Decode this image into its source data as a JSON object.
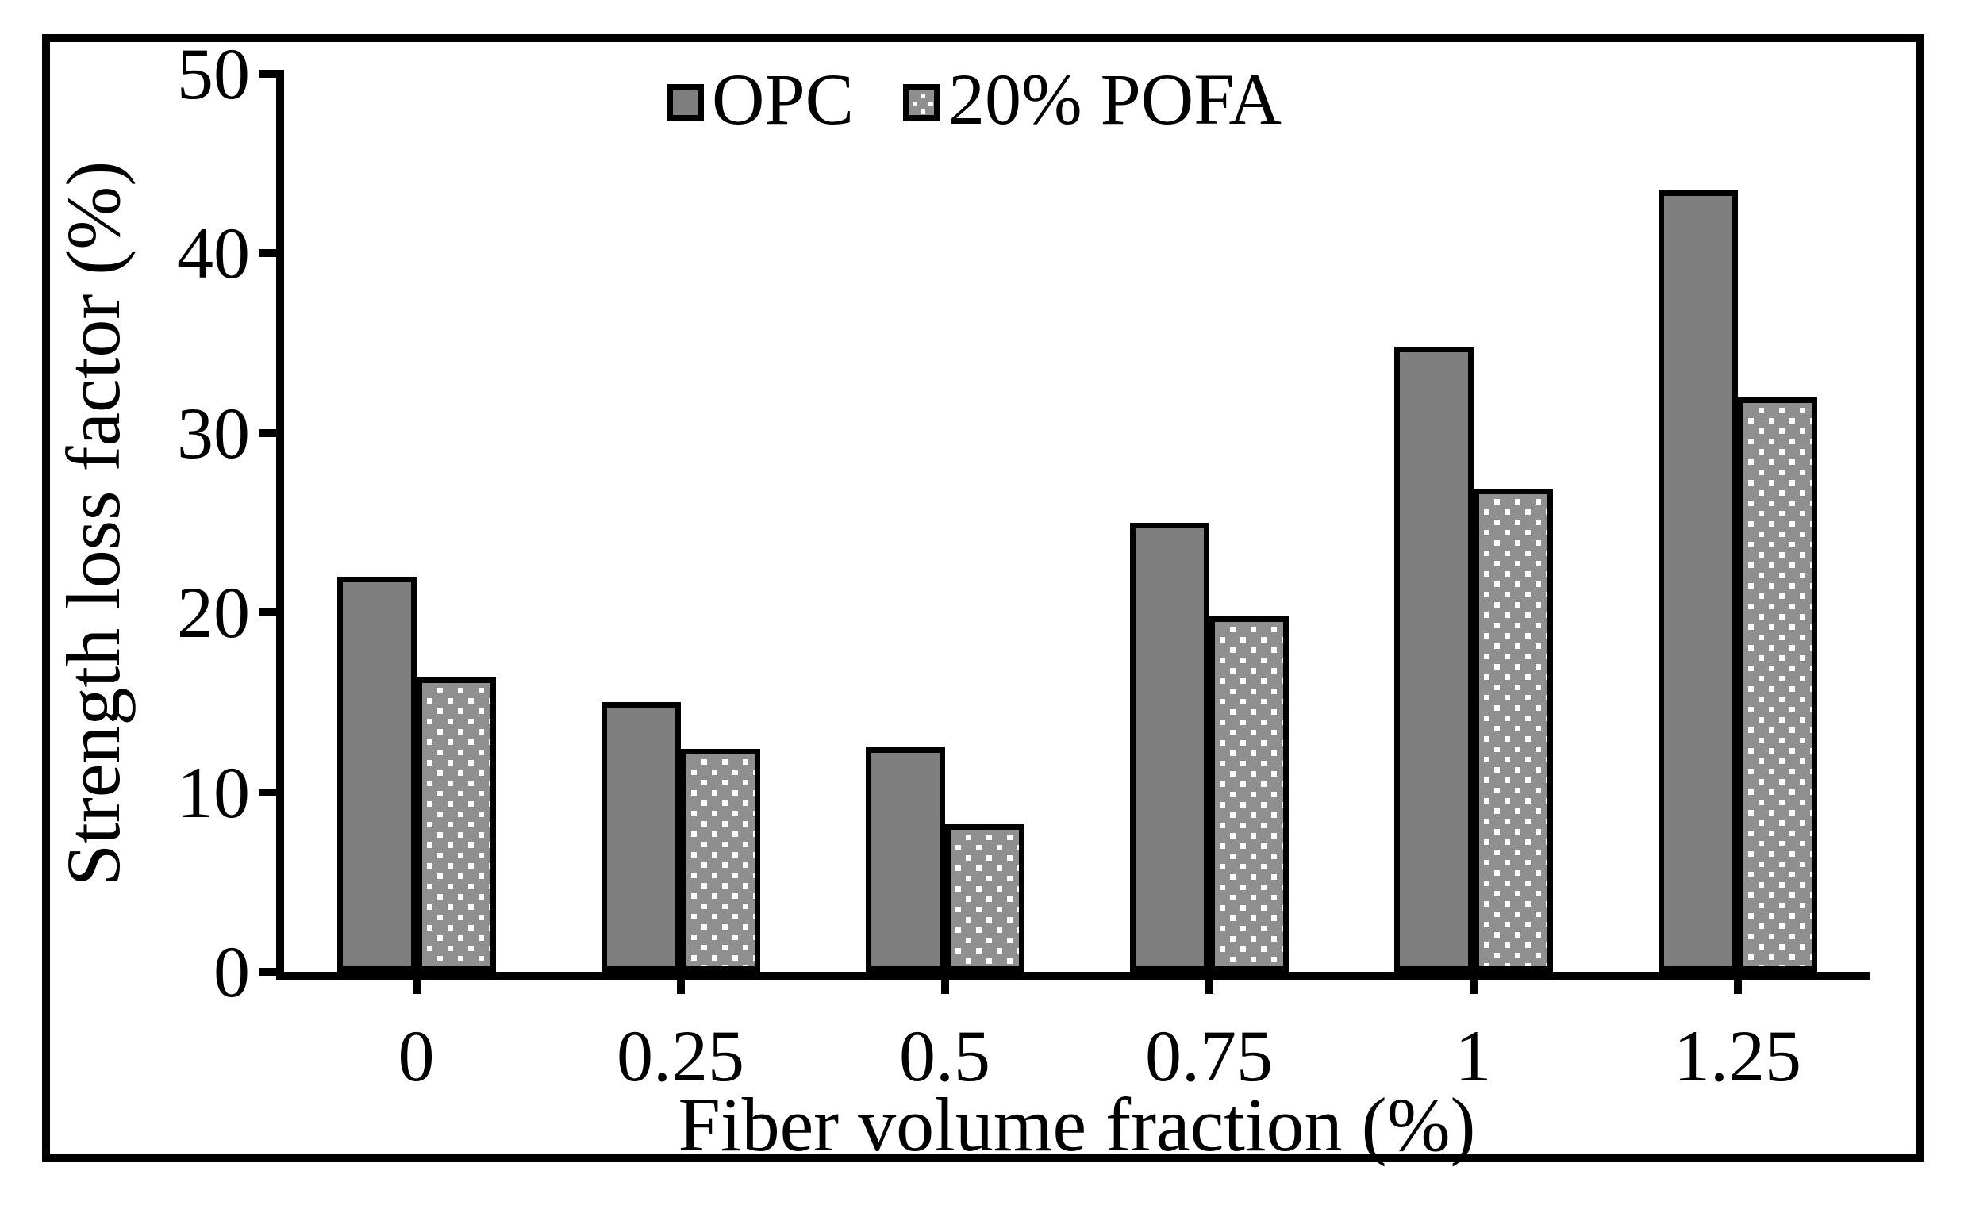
{
  "figure": {
    "background": "#ffffff",
    "border_color": "#000000"
  },
  "legend": {
    "position": "top-center",
    "items": [
      {
        "label": "OPC",
        "swatch": "solid-gray"
      },
      {
        "label": "20% POFA",
        "swatch": "white-dotted"
      }
    ]
  },
  "colors": {
    "opc_fill": "#7f7f7f",
    "pofa_dot": "#8f8f8f",
    "axis_and_text": "#000000"
  },
  "chart_data": {
    "type": "bar",
    "title": "",
    "xlabel": "Fiber volume fraction (%)",
    "ylabel": "Strength loss factor (%)",
    "categories": [
      "0",
      "0.25",
      "0.5",
      "0.75",
      "1",
      "1.25"
    ],
    "series": [
      {
        "name": "OPC",
        "values": [
          22.0,
          15.0,
          12.5,
          25.0,
          34.8,
          43.5
        ]
      },
      {
        "name": "20% POFA",
        "values": [
          16.4,
          12.4,
          8.2,
          19.8,
          26.9,
          32.0
        ]
      }
    ],
    "ylim": [
      0,
      50
    ],
    "yticks": [
      0,
      10,
      20,
      30,
      40,
      50
    ],
    "grid": "off",
    "legend_position": "top-center"
  }
}
